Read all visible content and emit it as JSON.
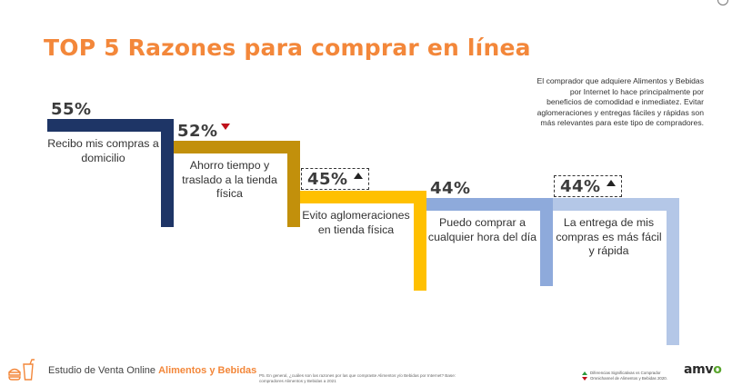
{
  "title": "TOP 5 Razones para comprar en línea",
  "note": "El comprador que adquiere Alimentos y Bebidas por Internet lo hace principalmente por beneficios de comodidad e inmediatez. Evitar aglomeraciones y entregas fáciles y rápidas son más relevantes para este tipo de compradores.",
  "chart_data": {
    "type": "bar",
    "categories": [
      "Recibo mis compras a domicilio",
      "Ahorro tiempo y traslado a la tienda física",
      "Evito aglomeraciones en tienda física",
      "Puedo comprar a cualquier hora del día",
      "La entrega de mis compras es más fácil y rápida"
    ],
    "values": [
      55,
      52,
      45,
      44,
      44
    ],
    "value_labels": [
      "55%",
      "52%",
      "45%",
      "44%",
      "44%"
    ],
    "significance": [
      "none",
      "down",
      "up",
      "none",
      "up"
    ],
    "boxed": [
      false,
      false,
      true,
      false,
      true
    ],
    "colors": [
      "#1e3566",
      "#c2900b",
      "#ffc000",
      "#8eaadb",
      "#b4c7e7"
    ]
  },
  "footer": {
    "brand_prefix": "Estudio de Venta Online",
    "brand_highlight": "Alimentos y Bebidas",
    "source": "P5. En general, ¿cuáles son las razones por las que compraste Alimentos y/o Bebidas por Internet? Base: compradores Alimentos y Bebidas a 2021",
    "legend": "Diferencias Significativas vs Comprador Omnichannel de Alimentos y Bebidas 2020.",
    "logo_main": "amv",
    "logo_accent": "o"
  }
}
